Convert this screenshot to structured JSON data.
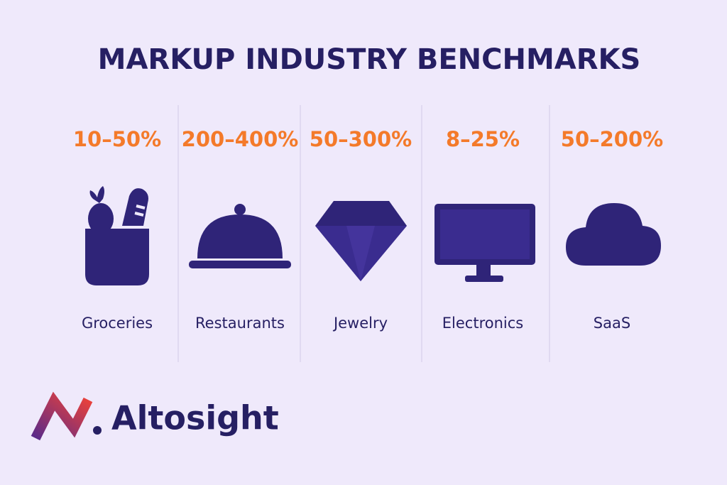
{
  "header": {
    "title": "MARKUP INDUSTRY BENCHMARKS"
  },
  "items": [
    {
      "range": "10–50%",
      "label": "Groceries"
    },
    {
      "range": "200–400%",
      "label": "Restaurants"
    },
    {
      "range": "50–300%",
      "label": "Jewelry"
    },
    {
      "range": "8–25%",
      "label": "Electronics"
    },
    {
      "range": "50–200%",
      "label": "SaaS"
    }
  ],
  "brand": {
    "name": "Altosight"
  }
}
